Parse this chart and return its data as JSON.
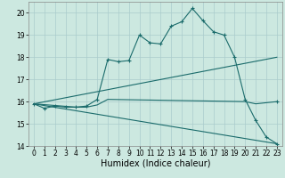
{
  "title": "",
  "xlabel": "Humidex (Indice chaleur)",
  "bg_color": "#cce8e0",
  "grid_color": "#aacccc",
  "line_color": "#1a6b6b",
  "xlim": [
    -0.5,
    23.5
  ],
  "ylim": [
    14,
    20.5
  ],
  "yticks": [
    14,
    15,
    16,
    17,
    18,
    19,
    20
  ],
  "xticks": [
    0,
    1,
    2,
    3,
    4,
    5,
    6,
    7,
    8,
    9,
    10,
    11,
    12,
    13,
    14,
    15,
    16,
    17,
    18,
    19,
    20,
    21,
    22,
    23
  ],
  "line1_x": [
    0,
    1,
    2,
    3,
    4,
    5,
    6,
    7,
    8,
    9,
    10,
    11,
    12,
    13,
    14,
    15,
    16,
    17,
    18,
    19,
    20,
    21,
    22,
    23
  ],
  "line1_y": [
    15.9,
    15.7,
    15.8,
    15.75,
    15.75,
    15.8,
    16.1,
    17.9,
    17.8,
    17.85,
    19.0,
    18.65,
    18.6,
    19.4,
    19.6,
    20.2,
    19.65,
    19.15,
    19.0,
    18.0,
    16.1,
    15.15,
    14.4,
    14.1
  ],
  "line2_x": [
    0,
    23
  ],
  "line2_y": [
    15.9,
    18.0
  ],
  "line3_x": [
    0,
    23
  ],
  "line3_y": [
    15.9,
    14.1
  ],
  "line4_x": [
    0,
    4,
    5,
    6,
    7,
    20,
    21,
    23
  ],
  "line4_y": [
    15.9,
    15.75,
    15.75,
    15.85,
    16.1,
    16.0,
    15.9,
    16.0
  ]
}
